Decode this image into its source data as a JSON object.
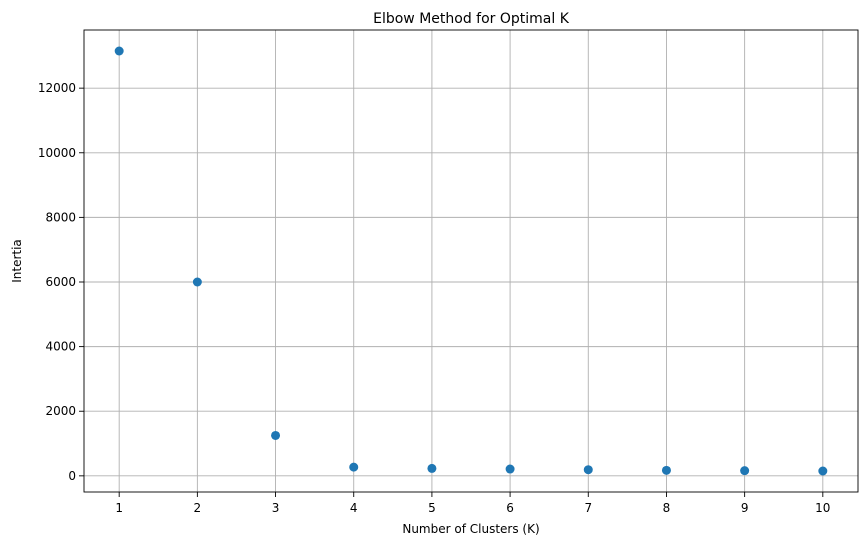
{
  "chart_data": {
    "type": "scatter",
    "title": "Elbow Method for Optimal K",
    "xlabel": "Number of Clusters (K)",
    "ylabel": "Intertia",
    "x": [
      1,
      2,
      3,
      4,
      5,
      6,
      7,
      8,
      9,
      10
    ],
    "y": [
      13150,
      6000,
      1250,
      270,
      230,
      210,
      190,
      170,
      160,
      150
    ],
    "xlim": [
      0.55,
      10.45
    ],
    "ylim": [
      -500,
      13800
    ],
    "xticks": [
      1,
      2,
      3,
      4,
      5,
      6,
      7,
      8,
      9,
      10
    ],
    "yticks": [
      0,
      2000,
      4000,
      6000,
      8000,
      10000,
      12000
    ],
    "grid": true,
    "marker_color": "#1f77b4"
  }
}
